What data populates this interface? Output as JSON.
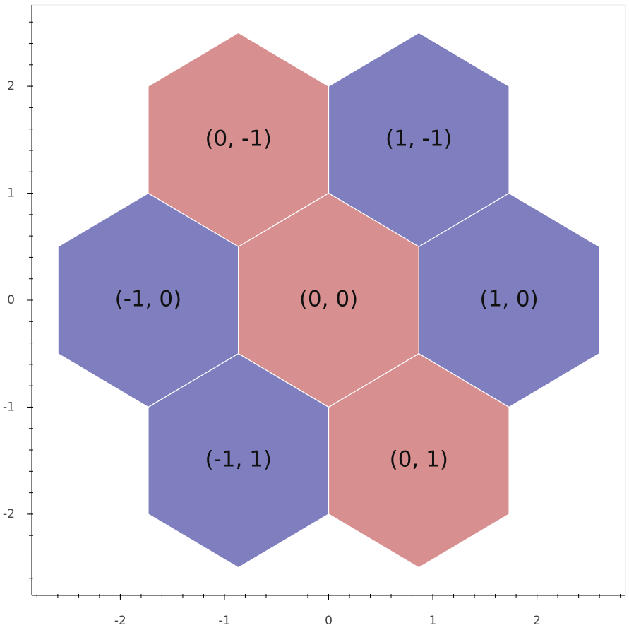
{
  "chart_data": {
    "type": "hex_tile",
    "orientation": "pointytop",
    "size": 1,
    "q": [
      0,
      1,
      -1,
      0,
      1,
      -1,
      0
    ],
    "r": [
      -1,
      -1,
      0,
      0,
      0,
      1,
      1
    ],
    "labels": [
      "(0, -1)",
      "(1, -1)",
      "(-1, 0)",
      "(0, 0)",
      "(1, 0)",
      "(-1, 1)",
      "(0, 1)"
    ],
    "colors": [
      "#d88f8f",
      "#7f7fbf",
      "#7f7fbf",
      "#d88f8f",
      "#7f7fbf",
      "#7f7fbf",
      "#d88f8f"
    ],
    "xlim": [
      -2.85,
      2.85
    ],
    "ylim": [
      -2.76,
      2.76
    ],
    "xticks": [
      -2,
      -1,
      0,
      1,
      2
    ],
    "yticks": [
      -2,
      -1,
      0,
      1,
      2
    ]
  }
}
